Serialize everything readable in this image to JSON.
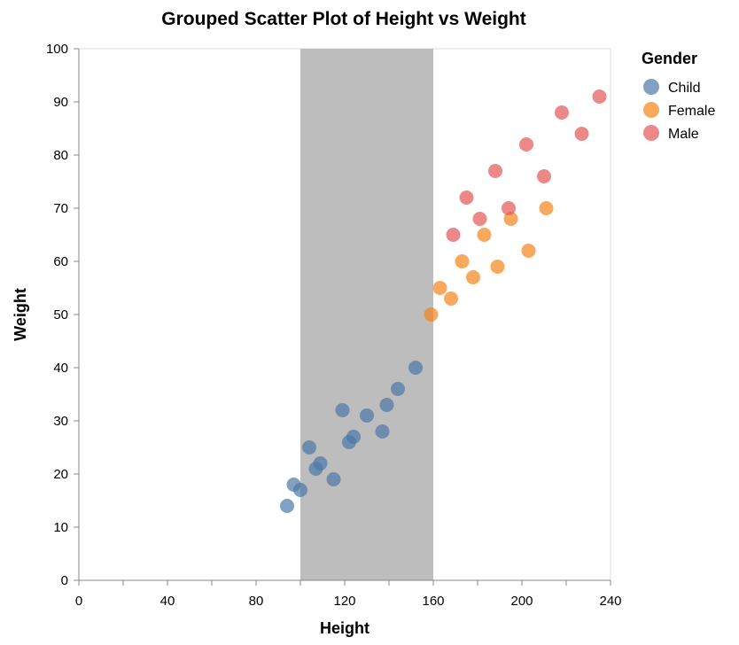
{
  "chart_data": {
    "type": "scatter",
    "title": "Grouped Scatter Plot of Height vs Weight",
    "xlabel": "Height",
    "ylabel": "Weight",
    "xlim": [
      0,
      240
    ],
    "ylim": [
      0,
      100
    ],
    "x_ticks": [
      0,
      20,
      40,
      60,
      80,
      100,
      120,
      140,
      160,
      180,
      200,
      220,
      240
    ],
    "x_tick_labels": [
      "0",
      "",
      "40",
      "",
      "80",
      "",
      "120",
      "",
      "160",
      "",
      "200",
      "",
      "240"
    ],
    "y_ticks": [
      0,
      10,
      20,
      30,
      40,
      50,
      60,
      70,
      80,
      90,
      100
    ],
    "y_tick_labels": [
      "0",
      "10",
      "20",
      "30",
      "40",
      "50",
      "60",
      "70",
      "80",
      "90",
      "100"
    ],
    "grid": false,
    "legend_placement": "top-right",
    "legend_title": "Gender",
    "highlight_band": {
      "x_range": [
        100,
        160
      ],
      "color": "#bdbdbd"
    },
    "series": [
      {
        "name": "Child",
        "color": "#4c78a8",
        "points": [
          {
            "x": 94,
            "y": 14
          },
          {
            "x": 97,
            "y": 18
          },
          {
            "x": 100,
            "y": 17
          },
          {
            "x": 104,
            "y": 25
          },
          {
            "x": 107,
            "y": 21
          },
          {
            "x": 109,
            "y": 22
          },
          {
            "x": 115,
            "y": 19
          },
          {
            "x": 119,
            "y": 32
          },
          {
            "x": 122,
            "y": 26
          },
          {
            "x": 124,
            "y": 27
          },
          {
            "x": 130,
            "y": 31
          },
          {
            "x": 137,
            "y": 28
          },
          {
            "x": 139,
            "y": 33
          },
          {
            "x": 144,
            "y": 36
          },
          {
            "x": 152,
            "y": 40
          }
        ]
      },
      {
        "name": "Female",
        "color": "#f58518",
        "points": [
          {
            "x": 159,
            "y": 50
          },
          {
            "x": 163,
            "y": 55
          },
          {
            "x": 168,
            "y": 53
          },
          {
            "x": 173,
            "y": 60
          },
          {
            "x": 178,
            "y": 57
          },
          {
            "x": 183,
            "y": 65
          },
          {
            "x": 189,
            "y": 59
          },
          {
            "x": 195,
            "y": 68
          },
          {
            "x": 203,
            "y": 62
          },
          {
            "x": 211,
            "y": 70
          }
        ]
      },
      {
        "name": "Male",
        "color": "#e45756",
        "points": [
          {
            "x": 169,
            "y": 65
          },
          {
            "x": 175,
            "y": 72
          },
          {
            "x": 181,
            "y": 68
          },
          {
            "x": 188,
            "y": 77
          },
          {
            "x": 194,
            "y": 70
          },
          {
            "x": 202,
            "y": 82
          },
          {
            "x": 210,
            "y": 76
          },
          {
            "x": 218,
            "y": 88
          },
          {
            "x": 227,
            "y": 84
          },
          {
            "x": 235,
            "y": 91
          }
        ]
      }
    ]
  }
}
